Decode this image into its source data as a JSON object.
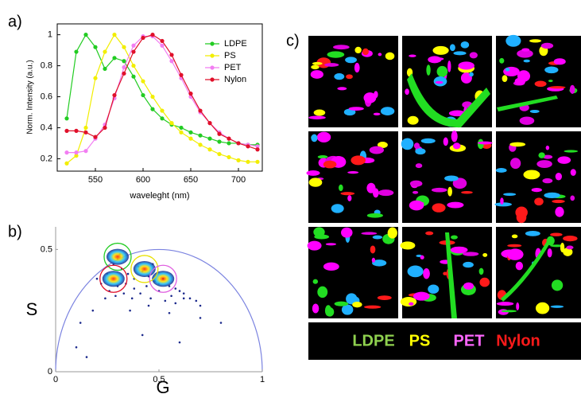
{
  "panel_labels": [
    "a)",
    "b)",
    "c)"
  ],
  "chart_data": [
    {
      "type": "line",
      "y_label": "Norm. Intensity (a.u.)",
      "x_label": "waveleght (nm)",
      "x": [
        520,
        530,
        540,
        550,
        560,
        570,
        580,
        590,
        600,
        610,
        620,
        630,
        640,
        650,
        660,
        670,
        680,
        690,
        700,
        710,
        720
      ],
      "xlim": [
        510,
        725
      ],
      "xticks": [
        550,
        600,
        650,
        700
      ],
      "ylim": [
        0.12,
        1.07
      ],
      "yticks": [
        0.2,
        0.4,
        0.6,
        0.8,
        1.0
      ],
      "legend": "upper right",
      "series": [
        {
          "name": "LDPE",
          "color": "#22cc22",
          "values": [
            0.46,
            0.89,
            1.0,
            0.92,
            0.78,
            0.85,
            0.83,
            0.73,
            0.61,
            0.52,
            0.46,
            0.42,
            0.4,
            0.37,
            0.35,
            0.33,
            0.31,
            0.3,
            0.3,
            0.29,
            0.29
          ]
        },
        {
          "name": "PS",
          "color": "#f2ee00",
          "values": [
            0.17,
            0.22,
            0.4,
            0.72,
            0.89,
            1.0,
            0.92,
            0.8,
            0.7,
            0.6,
            0.51,
            0.43,
            0.37,
            0.33,
            0.29,
            0.26,
            0.23,
            0.21,
            0.19,
            0.18,
            0.18
          ]
        },
        {
          "name": "PET",
          "color": "#f27ef2",
          "values": [
            0.24,
            0.24,
            0.25,
            0.33,
            0.42,
            0.59,
            0.79,
            0.93,
            0.99,
            0.99,
            0.93,
            0.83,
            0.72,
            0.6,
            0.5,
            0.43,
            0.37,
            0.33,
            0.3,
            0.29,
            0.28
          ]
        },
        {
          "name": "Nylon",
          "color": "#e0102a",
          "values": [
            0.38,
            0.38,
            0.37,
            0.34,
            0.4,
            0.61,
            0.75,
            0.89,
            0.98,
            1.0,
            0.96,
            0.87,
            0.74,
            0.62,
            0.51,
            0.43,
            0.36,
            0.33,
            0.3,
            0.28,
            0.26
          ]
        }
      ]
    },
    {
      "type": "scatter",
      "x_label": "G",
      "y_label": "S",
      "xlim": [
        0,
        1
      ],
      "xticks": [
        0,
        0.5,
        1
      ],
      "ylim": [
        0,
        0.55
      ],
      "yticks": [
        0,
        0.5
      ],
      "color": "#1c2a8c",
      "x": [
        0.22,
        0.25,
        0.28,
        0.3,
        0.32,
        0.35,
        0.38,
        0.4,
        0.42,
        0.45,
        0.48,
        0.5,
        0.52,
        0.55,
        0.58,
        0.6,
        0.62,
        0.65,
        0.68,
        0.7,
        0.26,
        0.3,
        0.34,
        0.38,
        0.44,
        0.5,
        0.56,
        0.62,
        0.24,
        0.29,
        0.33,
        0.37,
        0.41,
        0.46,
        0.53,
        0.58,
        0.12,
        0.18,
        0.2,
        0.36,
        0.45,
        0.55,
        0.7,
        0.8,
        0.1,
        0.15,
        0.42,
        0.6,
        0.31,
        0.47
      ],
      "y": [
        0.36,
        0.4,
        0.44,
        0.46,
        0.42,
        0.4,
        0.38,
        0.43,
        0.41,
        0.39,
        0.37,
        0.36,
        0.38,
        0.35,
        0.34,
        0.33,
        0.32,
        0.3,
        0.29,
        0.27,
        0.33,
        0.35,
        0.36,
        0.34,
        0.35,
        0.33,
        0.31,
        0.3,
        0.3,
        0.31,
        0.32,
        0.3,
        0.32,
        0.3,
        0.29,
        0.28,
        0.2,
        0.25,
        0.38,
        0.25,
        0.27,
        0.24,
        0.22,
        0.2,
        0.1,
        0.06,
        0.15,
        0.12,
        0.48,
        0.44
      ],
      "clusters": [
        {
          "color": "#22cc22",
          "x": 0.3,
          "y": 0.47
        },
        {
          "color": "#e8e000",
          "x": 0.43,
          "y": 0.42
        },
        {
          "color": "#e060e0",
          "x": 0.52,
          "y": 0.38
        },
        {
          "color": "#e0102a",
          "x": 0.28,
          "y": 0.38
        }
      ]
    }
  ],
  "image_legend": [
    {
      "label": "LDPE",
      "color": "#8fd14f"
    },
    {
      "label": "PS",
      "color": "#ffff00"
    },
    {
      "label": "PET",
      "color": "#ff66ff"
    },
    {
      "label": "Nylon",
      "color": "#ff1a1a"
    }
  ]
}
